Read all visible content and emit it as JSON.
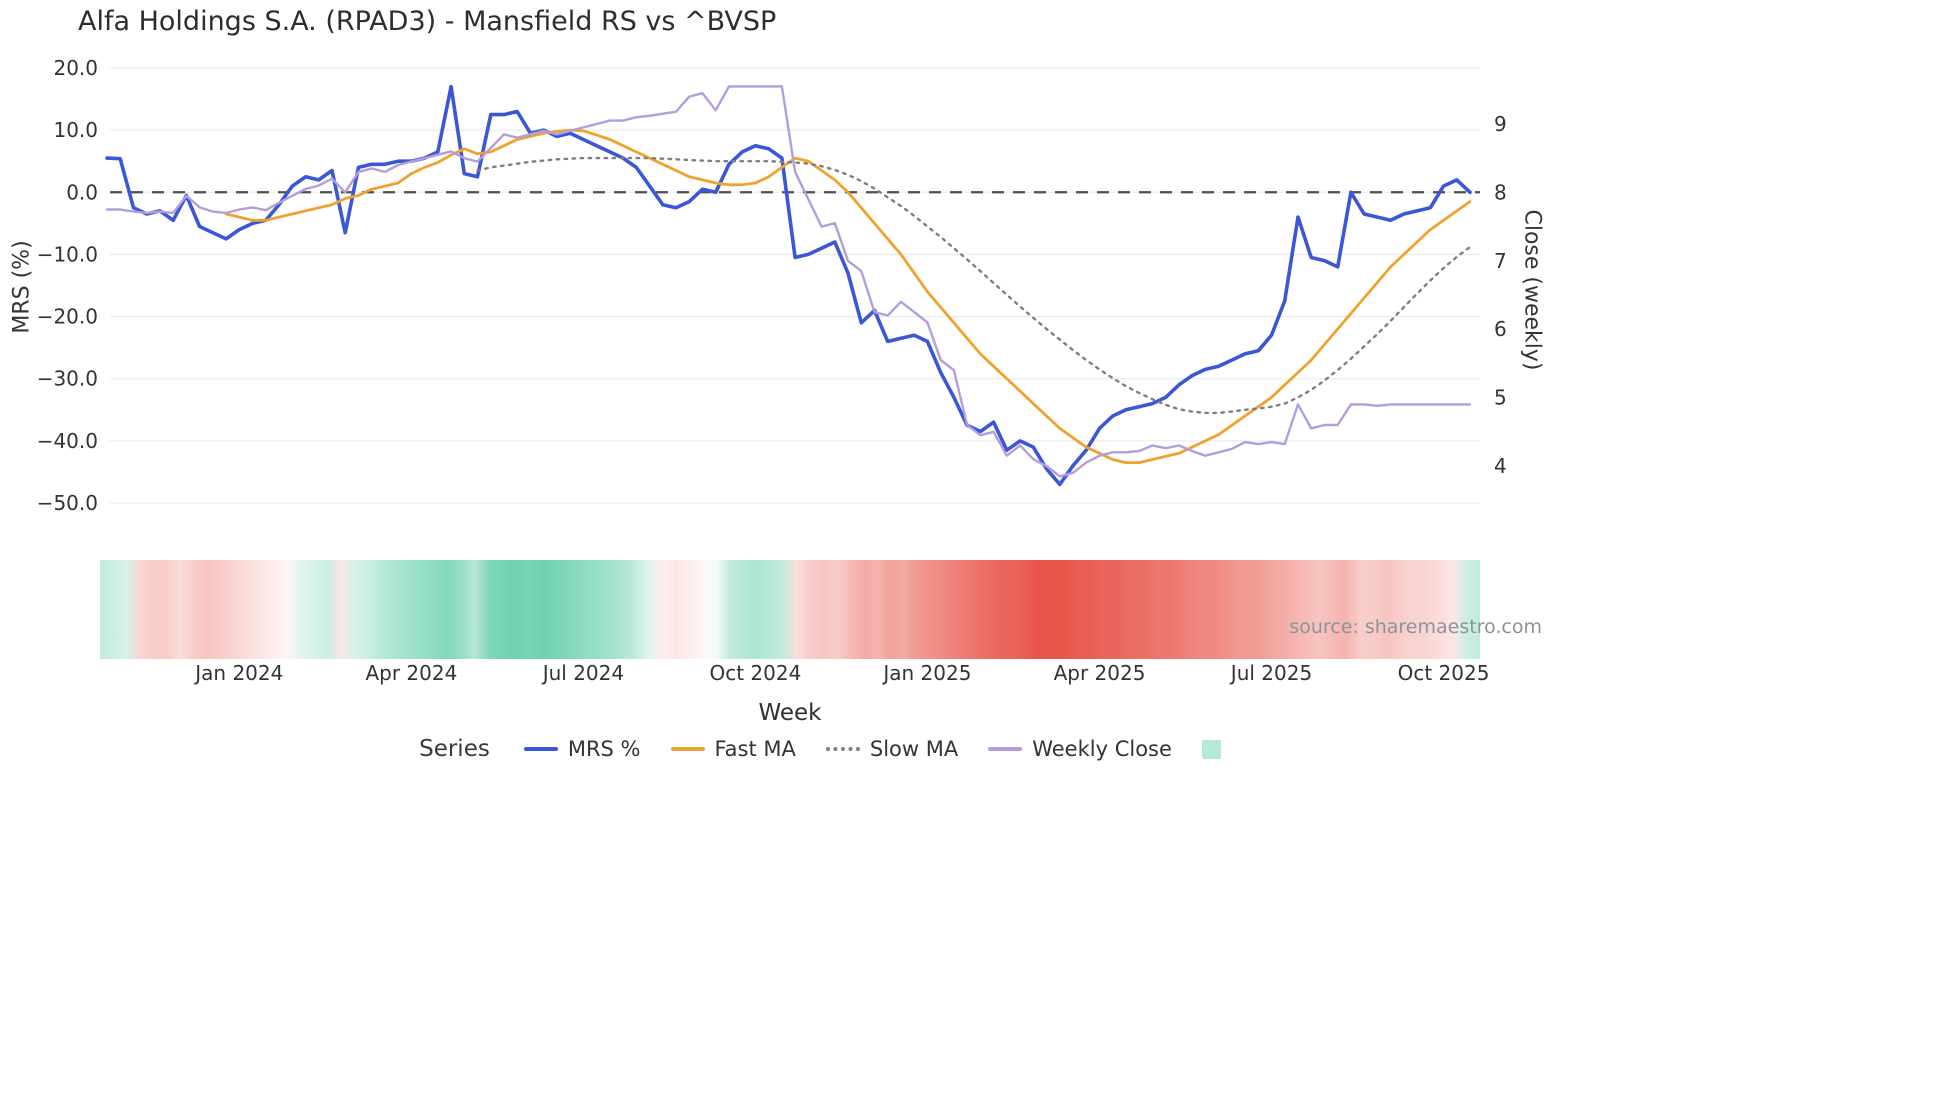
{
  "source": "source: sharemaestro.com",
  "legend": {
    "title": "Series",
    "items": [
      {
        "label": "MRS %",
        "swatch": "line",
        "color": "#3a57d7"
      },
      {
        "label": "Fast MA",
        "swatch": "line",
        "color": "#f0a22e"
      },
      {
        "label": "Slow MA",
        "swatch": "dotted",
        "color": "#7f7f7f"
      },
      {
        "label": "Weekly Close",
        "swatch": "line",
        "color": "#b39ddb"
      },
      {
        "label": "",
        "swatch": "square",
        "color": "#b6ead8"
      }
    ]
  },
  "chart_data": {
    "type": "line",
    "title": "Alfa Holdings S.A. (RPAD3) - Mansfield RS vs ^BVSP",
    "xlabel": "Week",
    "ylabel_left": "MRS (%)",
    "ylabel_right": "Close (weekly)",
    "ylim_left": [
      -50,
      20
    ],
    "ylim_right": [
      4,
      9
    ],
    "grid": true,
    "zero_line": true,
    "n_points": 104,
    "x_unit": "weekly, Oct 2023 - Oct 2025",
    "x_ticks": [
      {
        "index": 10,
        "label": "Jan 2024"
      },
      {
        "index": 23,
        "label": "Apr 2024"
      },
      {
        "index": 36,
        "label": "Jul 2024"
      },
      {
        "index": 49,
        "label": "Oct 2024"
      },
      {
        "index": 62,
        "label": "Jan 2025"
      },
      {
        "index": 75,
        "label": "Apr 2025"
      },
      {
        "index": 88,
        "label": "Jul 2025"
      },
      {
        "index": 101,
        "label": "Oct 2025"
      }
    ],
    "left_ticks": [
      {
        "value": 20,
        "label": "20.0"
      },
      {
        "value": 10,
        "label": "10.0"
      },
      {
        "value": 0,
        "label": "0.0"
      },
      {
        "value": -10,
        "label": "−10.0"
      },
      {
        "value": -20,
        "label": "−20.0"
      },
      {
        "value": -30,
        "label": "−30.0"
      },
      {
        "value": -40,
        "label": "−40.0"
      },
      {
        "value": -50,
        "label": "−50.0"
      }
    ],
    "right_ticks": [
      {
        "value": 9,
        "label": "9"
      },
      {
        "value": 8,
        "label": "8"
      },
      {
        "value": 7,
        "label": "7"
      },
      {
        "value": 6,
        "label": "6"
      },
      {
        "value": 5,
        "label": "5"
      },
      {
        "value": 4,
        "label": "4"
      }
    ],
    "series": [
      {
        "name": "MRS %",
        "axis": "left",
        "color": "#3a57d7",
        "style": "solid",
        "width": 3.6,
        "values": [
          5.5,
          5.4,
          -2.5,
          -3.5,
          -3.0,
          -4.5,
          -0.5,
          -5.5,
          -6.5,
          -7.5,
          -6.0,
          -5.0,
          -4.5,
          -2.0,
          1.0,
          2.5,
          2.0,
          3.5,
          -6.5,
          4.0,
          4.5,
          4.5,
          5.0,
          5.0,
          5.5,
          6.5,
          17.0,
          3.0,
          2.5,
          12.5,
          12.5,
          13.0,
          9.5,
          10.0,
          9.0,
          9.5,
          8.5,
          7.5,
          6.5,
          5.5,
          4.0,
          1.0,
          -2.0,
          -2.5,
          -1.5,
          0.5,
          0.0,
          4.5,
          6.5,
          7.5,
          7.0,
          5.5,
          -10.5,
          -10.0,
          -9.0,
          -8.0,
          -13.0,
          -21.0,
          -19.0,
          -24.0,
          -23.5,
          -23.0,
          -24.0,
          -29.0,
          -33.0,
          -37.5,
          -38.5,
          -37.0,
          -41.5,
          -40.0,
          -41.0,
          -44.5,
          -47.0,
          -44.0,
          -41.5,
          -38.0,
          -36.0,
          -35.0,
          -34.5,
          -34.0,
          -33.0,
          -31.0,
          -29.5,
          -28.5,
          -28.0,
          -27.0,
          -26.0,
          -25.5,
          -23.0,
          -17.5,
          -4.0,
          -10.5,
          -11.0,
          -12.0,
          0.0,
          -3.5,
          -4.0,
          -4.5,
          -3.5,
          -3.0,
          -2.5,
          1.0,
          2.0,
          0.0
        ]
      },
      {
        "name": "Fast MA",
        "axis": "left",
        "color": "#f0a22e",
        "style": "solid",
        "width": 2.8,
        "values": [
          null,
          null,
          null,
          null,
          null,
          null,
          null,
          null,
          null,
          -3.5,
          -4.0,
          -4.5,
          -4.5,
          -4.0,
          -3.5,
          -3.0,
          -2.5,
          -2.0,
          -1.0,
          -0.5,
          0.5,
          1.0,
          1.5,
          3.0,
          4.0,
          4.8,
          6.0,
          7.0,
          6.2,
          6.5,
          7.5,
          8.5,
          9.0,
          9.5,
          9.8,
          10.0,
          9.9,
          9.2,
          8.5,
          7.5,
          6.5,
          5.5,
          4.5,
          3.5,
          2.5,
          2.0,
          1.5,
          1.2,
          1.2,
          1.5,
          2.5,
          4.0,
          5.5,
          5.0,
          3.5,
          2.0,
          0.0,
          -2.5,
          -5.0,
          -7.5,
          -10.0,
          -13.0,
          -16.0,
          -18.5,
          -21.0,
          -23.5,
          -26.0,
          -28.0,
          -30.0,
          -32.0,
          -34.0,
          -36.0,
          -38.0,
          -39.5,
          -41.0,
          -42.0,
          -43.0,
          -43.5,
          -43.5,
          -43.0,
          -42.5,
          -42.0,
          -41.0,
          -40.0,
          -39.0,
          -37.5,
          -36.0,
          -34.5,
          -33.0,
          -31.0,
          -29.0,
          -27.0,
          -24.5,
          -22.0,
          -19.5,
          -17.0,
          -14.5,
          -12.0,
          -10.0,
          -8.0,
          -6.0,
          -4.5,
          -3.0,
          -1.5
        ]
      },
      {
        "name": "Slow MA",
        "axis": "left",
        "color": "#7f7f7f",
        "style": "dotted",
        "width": 2.4,
        "values": [
          null,
          null,
          null,
          null,
          null,
          null,
          null,
          null,
          null,
          null,
          null,
          null,
          null,
          null,
          null,
          null,
          null,
          null,
          null,
          null,
          null,
          null,
          null,
          null,
          null,
          null,
          null,
          null,
          3.5,
          4.0,
          4.3,
          4.6,
          4.9,
          5.1,
          5.3,
          5.4,
          5.5,
          5.5,
          5.5,
          5.5,
          5.5,
          5.5,
          5.4,
          5.3,
          5.2,
          5.1,
          5.0,
          5.0,
          5.0,
          5.0,
          5.0,
          4.9,
          4.8,
          4.6,
          4.2,
          3.6,
          2.8,
          1.8,
          0.6,
          -0.8,
          -2.2,
          -3.8,
          -5.5,
          -7.2,
          -9.0,
          -10.8,
          -12.7,
          -14.6,
          -16.5,
          -18.4,
          -20.2,
          -22.0,
          -23.7,
          -25.4,
          -27.0,
          -28.5,
          -29.9,
          -31.2,
          -32.3,
          -33.3,
          -34.2,
          -34.9,
          -35.3,
          -35.5,
          -35.5,
          -35.3,
          -35.0,
          -34.8,
          -34.5,
          -34.0,
          -33.0,
          -31.8,
          -30.3,
          -28.6,
          -26.8,
          -24.8,
          -22.8,
          -20.7,
          -18.5,
          -16.3,
          -14.2,
          -12.2,
          -10.4,
          -8.8
        ]
      },
      {
        "name": "Weekly Close",
        "axis": "right",
        "color": "#b39ddb",
        "style": "solid",
        "width": 2.4,
        "values": [
          7.75,
          7.75,
          7.72,
          7.7,
          7.72,
          7.7,
          7.95,
          7.78,
          7.72,
          7.7,
          7.75,
          7.78,
          7.74,
          7.85,
          7.95,
          8.05,
          8.1,
          8.2,
          8.0,
          8.3,
          8.35,
          8.3,
          8.4,
          8.45,
          8.5,
          8.55,
          8.6,
          8.5,
          8.45,
          8.65,
          8.85,
          8.8,
          8.85,
          8.9,
          8.85,
          8.9,
          8.95,
          9.0,
          9.05,
          9.05,
          9.1,
          9.12,
          9.15,
          9.18,
          9.4,
          9.45,
          9.2,
          9.55,
          9.55,
          9.55,
          9.55,
          9.55,
          8.3,
          7.9,
          7.5,
          7.55,
          7.0,
          6.85,
          6.25,
          6.2,
          6.4,
          6.25,
          6.1,
          5.55,
          5.4,
          4.6,
          4.45,
          4.5,
          4.15,
          4.3,
          4.1,
          4.0,
          3.85,
          3.9,
          4.05,
          4.15,
          4.2,
          4.2,
          4.22,
          4.3,
          4.26,
          4.3,
          4.22,
          4.15,
          4.2,
          4.25,
          4.35,
          4.32,
          4.35,
          4.32,
          4.9,
          4.55,
          4.6,
          4.6,
          4.9,
          4.9,
          4.88,
          4.9,
          4.9,
          4.9,
          4.9,
          4.9,
          4.9,
          4.9
        ]
      }
    ],
    "strip": {
      "description": "regime heat strip under chart, green=positive, red=negative",
      "positive_color": "#2fbd8f",
      "negative_color": "#e8554a",
      "values": [
        0.3,
        0.25,
        0.2,
        -0.25,
        -0.3,
        -0.3,
        -0.2,
        -0.3,
        -0.35,
        -0.3,
        -0.25,
        -0.2,
        -0.15,
        -0.1,
        -0.05,
        0.15,
        0.2,
        0.25,
        -0.15,
        0.2,
        0.25,
        0.35,
        0.4,
        0.45,
        0.5,
        0.55,
        0.6,
        0.5,
        0.35,
        0.6,
        0.65,
        0.7,
        0.65,
        0.7,
        0.65,
        0.6,
        0.55,
        0.5,
        0.45,
        0.4,
        0.3,
        0.15,
        -0.1,
        -0.15,
        -0.1,
        -0.05,
        0.05,
        0.3,
        0.35,
        0.4,
        0.35,
        0.3,
        -0.2,
        -0.3,
        -0.35,
        -0.3,
        -0.4,
        -0.5,
        -0.45,
        -0.55,
        -0.5,
        -0.6,
        -0.65,
        -0.7,
        -0.75,
        -0.8,
        -0.85,
        -0.9,
        -0.9,
        -0.95,
        -1.0,
        -1.0,
        -1.0,
        -0.95,
        -0.95,
        -0.9,
        -0.9,
        -0.85,
        -0.85,
        -0.8,
        -0.8,
        -0.75,
        -0.7,
        -0.7,
        -0.65,
        -0.6,
        -0.6,
        -0.55,
        -0.5,
        -0.45,
        -0.4,
        -0.35,
        -0.4,
        -0.45,
        -0.3,
        -0.3,
        -0.35,
        -0.3,
        -0.25,
        -0.25,
        -0.2,
        -0.15,
        0.25,
        0.3
      ]
    }
  }
}
